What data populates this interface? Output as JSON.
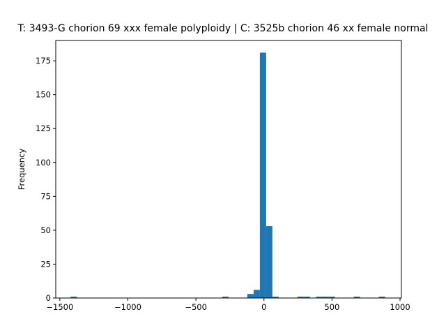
{
  "chart_data": {
    "type": "bar",
    "title": "T: 3493-G chorion 69 xxx female polyploidy | C: 3525b chorion 46 xx female normal",
    "xlabel": "",
    "ylabel": "Frequency",
    "xlim": [
      -1530,
      1010
    ],
    "ylim": [
      0,
      190
    ],
    "xticks": [
      -1500,
      -1000,
      -500,
      0,
      500,
      1000
    ],
    "xtick_labels": [
      "−1500",
      "−1000",
      "−500",
      "0",
      "500",
      "1000"
    ],
    "yticks": [
      0,
      25,
      50,
      75,
      100,
      125,
      150,
      175
    ],
    "ytick_labels": [
      "0",
      "25",
      "50",
      "75",
      "100",
      "125",
      "150",
      "175"
    ],
    "bar_color": "#1f77b4",
    "bins": [
      {
        "x0": -1420,
        "x1": -1374,
        "count": 1
      },
      {
        "x0": -306,
        "x1": -260,
        "count": 1
      },
      {
        "x0": -122,
        "x1": -76,
        "count": 3
      },
      {
        "x0": -76,
        "x1": -30,
        "count": 6
      },
      {
        "x0": -30,
        "x1": 16,
        "count": 181
      },
      {
        "x0": 16,
        "x1": 62,
        "count": 53
      },
      {
        "x0": 62,
        "x1": 108,
        "count": 1
      },
      {
        "x0": 246,
        "x1": 292,
        "count": 1
      },
      {
        "x0": 292,
        "x1": 338,
        "count": 1
      },
      {
        "x0": 384,
        "x1": 430,
        "count": 1
      },
      {
        "x0": 430,
        "x1": 476,
        "count": 1
      },
      {
        "x0": 476,
        "x1": 522,
        "count": 1
      },
      {
        "x0": 660,
        "x1": 706,
        "count": 1
      },
      {
        "x0": 844,
        "x1": 890,
        "count": 1
      }
    ]
  }
}
